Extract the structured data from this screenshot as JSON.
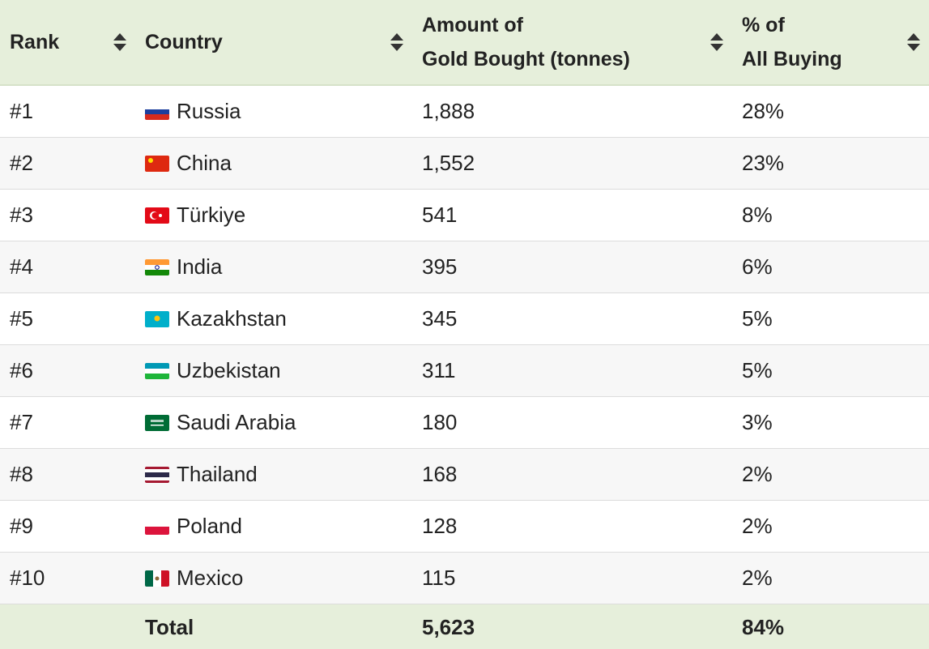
{
  "table": {
    "header": [
      [
        "Rank"
      ],
      [
        "Country"
      ],
      [
        "Amount of",
        "Gold Bought (tonnes)"
      ],
      [
        "% of",
        "All Buying"
      ]
    ],
    "rows": [
      [
        "#1",
        "Russia",
        "1,888",
        "28%"
      ],
      [
        "#2",
        "China",
        "1,552",
        "23%"
      ],
      [
        "#3",
        "Türkiye",
        "541",
        "8%"
      ],
      [
        "#4",
        "India",
        "395",
        "6%"
      ],
      [
        "#5",
        "Kazakhstan",
        "345",
        "5%"
      ],
      [
        "#6",
        "Uzbekistan",
        "311",
        "5%"
      ],
      [
        "#7",
        "Saudi Arabia",
        "180",
        "3%"
      ],
      [
        "#8",
        "Thailand",
        "168",
        "2%"
      ],
      [
        "#9",
        "Poland",
        "128",
        "2%"
      ],
      [
        "#10",
        "Mexico",
        "115",
        "2%"
      ]
    ],
    "footer": [
      "Total",
      "5,623",
      "84%"
    ]
  }
}
